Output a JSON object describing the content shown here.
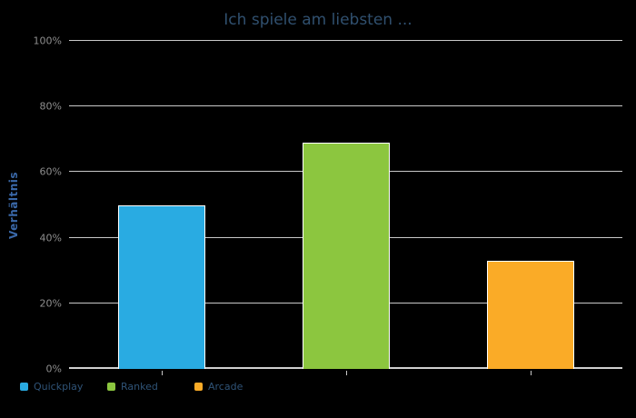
{
  "chart_data": {
    "type": "bar",
    "title": "Ich spiele am liebsten ...",
    "categories": [
      "Quickplay",
      "Ranked",
      "Arcade"
    ],
    "values": [
      50,
      69,
      33
    ],
    "xlabel": "",
    "ylabel": "Verhältnis",
    "ylim": [
      0,
      100
    ],
    "ytick_labels": [
      "0%",
      "20%",
      "40%",
      "60%",
      "80%",
      "100%"
    ],
    "grid": true,
    "legend_position": "bottom-left",
    "series_colors": [
      "#29abe2",
      "#8cc63f",
      "#faab27"
    ]
  },
  "colors": {
    "background": "#000000",
    "title_text": "#30506f",
    "axis_title_text": "#3a68a8",
    "tick_label_text": "#8e8e8e",
    "gridline": "#c8c8c8",
    "bar_stroke": "#ffffff",
    "legend_label_text": "#2f5377"
  }
}
